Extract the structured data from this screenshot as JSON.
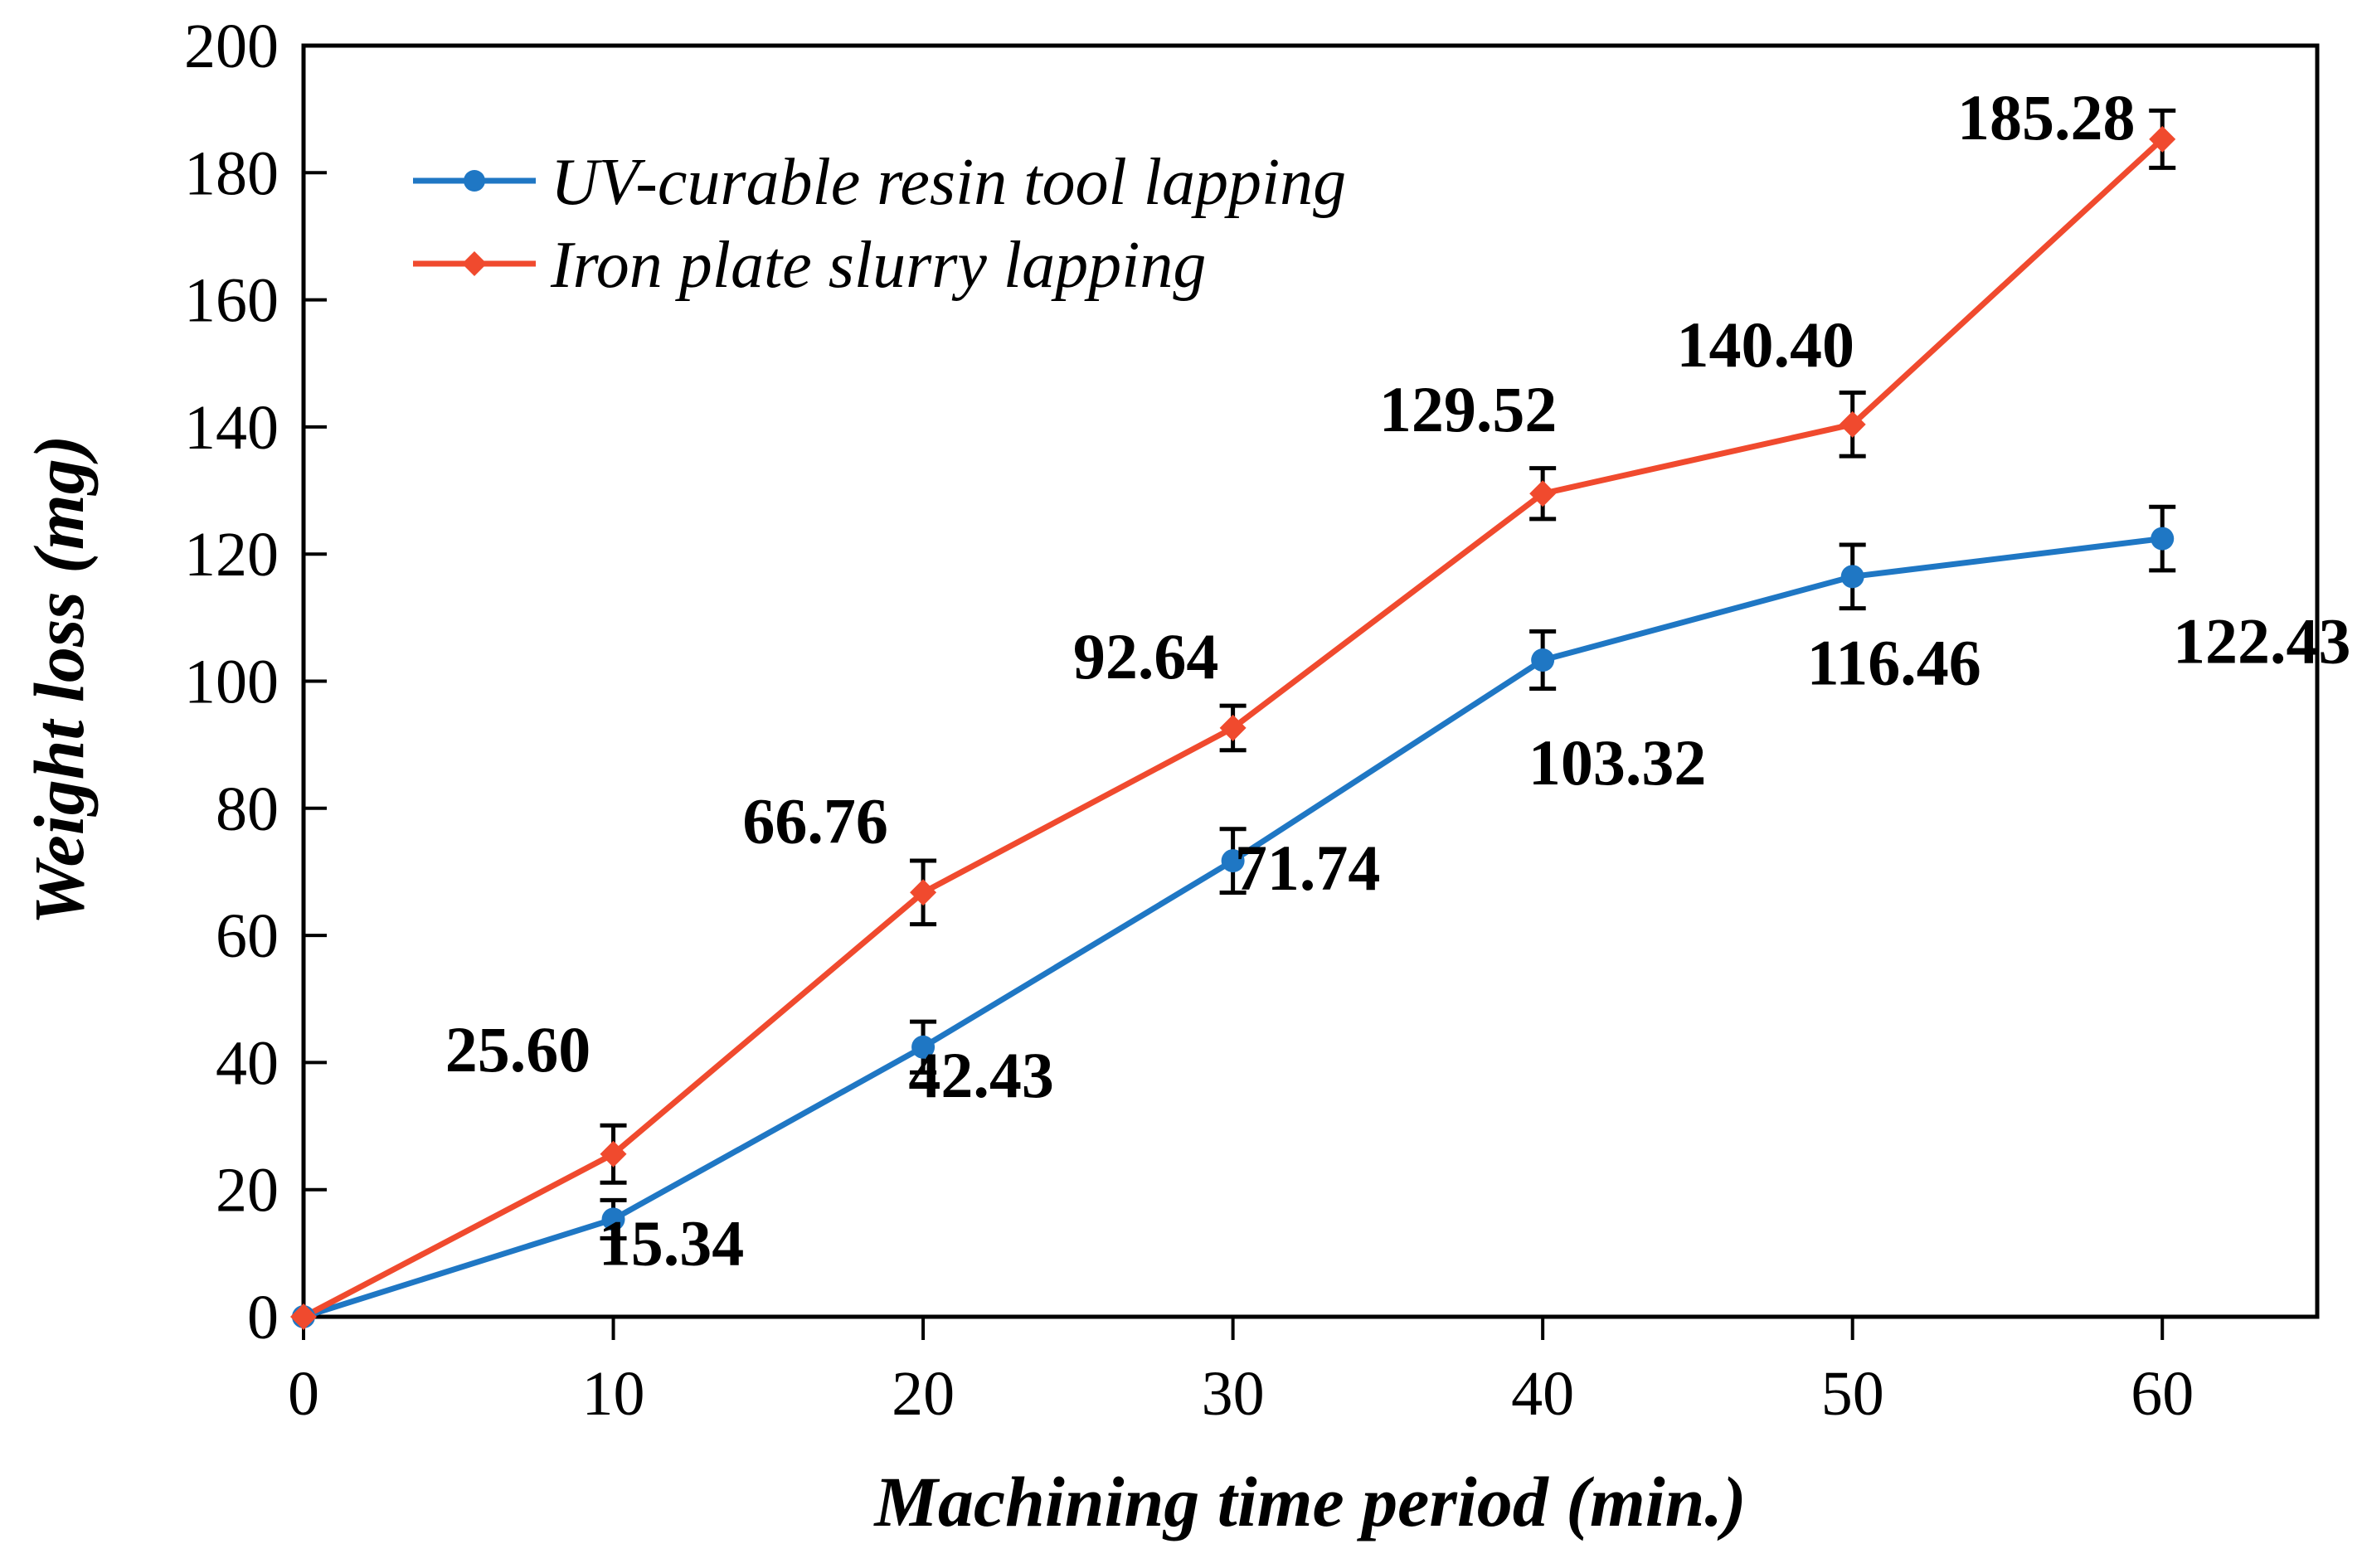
{
  "chart_data": {
    "type": "line",
    "title": "",
    "xlabel": "Machining time period (min.)",
    "ylabel": "Weight loss (mg)",
    "xlim": [
      0,
      65
    ],
    "ylim": [
      0,
      200
    ],
    "xticks": [
      0,
      10,
      20,
      30,
      40,
      50,
      60
    ],
    "yticks": [
      0,
      20,
      40,
      60,
      80,
      100,
      120,
      140,
      160,
      180,
      200
    ],
    "grid": false,
    "legend": "top-left",
    "x": [
      0,
      10,
      20,
      30,
      40,
      50,
      60
    ],
    "series": [
      {
        "name": "UV-curable resin tool lapping",
        "color": "#1f77c4",
        "marker": "circle",
        "values": [
          0,
          15.34,
          42.43,
          71.74,
          103.32,
          116.46,
          122.43
        ],
        "errors": [
          0,
          3.0,
          4.0,
          5.0,
          4.5,
          5.0,
          5.0
        ],
        "labels": [
          "",
          "15.34",
          "42.43",
          "71.74",
          "103.32",
          "116.46",
          "122.43"
        ]
      },
      {
        "name": "Iron plate slurry lapping",
        "color": "#f04a2e",
        "marker": "diamond",
        "values": [
          0,
          25.6,
          66.76,
          92.64,
          129.52,
          140.4,
          185.28
        ],
        "errors": [
          0,
          4.5,
          5.0,
          3.5,
          4.0,
          5.0,
          4.5
        ],
        "labels": [
          "",
          "25.60",
          "66.76",
          "92.64",
          "129.52",
          "140.40",
          "185.28"
        ]
      }
    ]
  }
}
